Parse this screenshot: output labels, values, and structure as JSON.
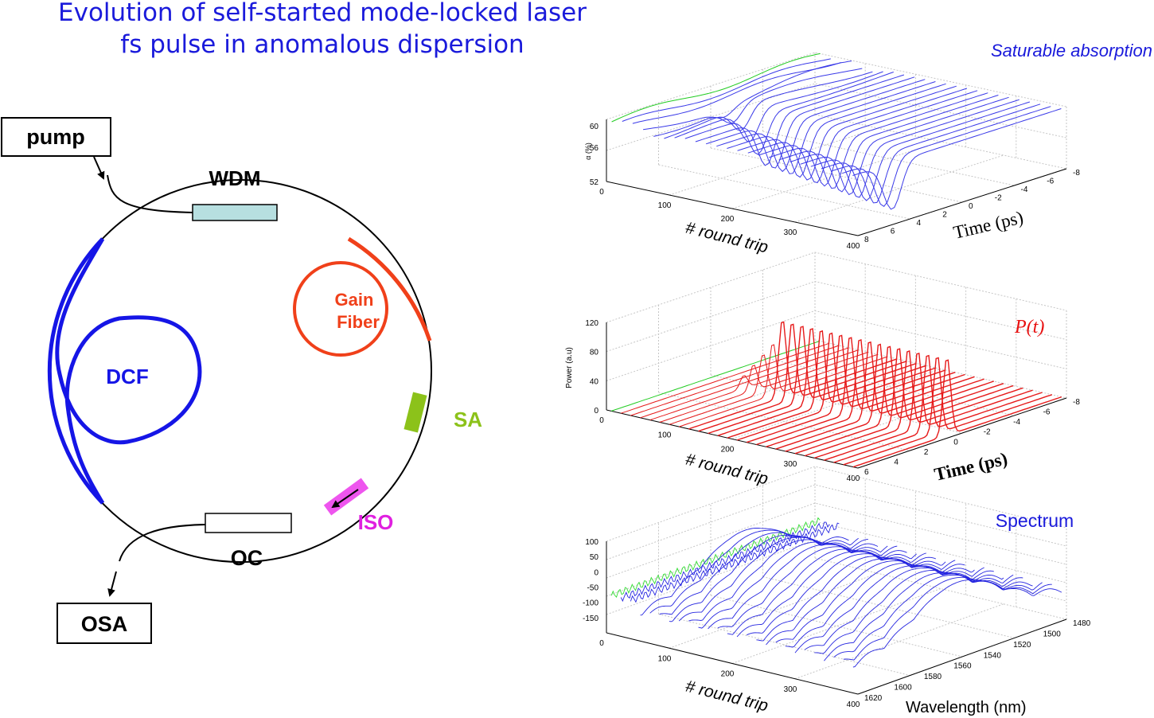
{
  "title": {
    "line1": "Evolution of self-started mode-locked laser",
    "line2": "fs pulse in anomalous dispersion"
  },
  "diagram": {
    "pump": "pump",
    "wdm": "WDM",
    "gain_line1": "Gain",
    "gain_line2": "Fiber",
    "dcf": "DCF",
    "sa": "SA",
    "iso": "ISO",
    "oc": "OC",
    "osa": "OSA",
    "colors": {
      "dcf": "#1515e6",
      "gain": "#f0401a",
      "sa": "#8cc21a",
      "iso": "#ee55ee",
      "wdm": "#b7dfe0"
    }
  },
  "plots": {
    "sa": {
      "label": "Saturable absorption",
      "ylabel": "α (%)",
      "yticks": [
        "60",
        "56",
        "52"
      ],
      "xlabel": "# round trip",
      "xticks": [
        "0",
        "100",
        "200",
        "300",
        "400"
      ],
      "tlabel": "Time (ps)",
      "tticks": [
        "-8",
        "-6",
        "-4",
        "-2",
        "0",
        "2",
        "4",
        "6",
        "8"
      ]
    },
    "power": {
      "label": "P(t)",
      "ylabel": "Power (a.u)",
      "yticks": [
        "120",
        "80",
        "40",
        "0"
      ],
      "xlabel": "# round trip",
      "xticks": [
        "0",
        "100",
        "200",
        "300",
        "400"
      ],
      "tlabel": "Time (ps)",
      "tticks": [
        "-8",
        "-6",
        "-4",
        "-2",
        "0",
        "2",
        "4",
        "6"
      ]
    },
    "spectrum": {
      "label": "Spectrum",
      "yticks": [
        "100",
        "50",
        "0",
        "-50",
        "-100",
        "-150"
      ],
      "xlabel": "# round trip",
      "xticks": [
        "0",
        "100",
        "200",
        "300",
        "400"
      ],
      "wlabel": "Wavelength (nm)",
      "wticks": [
        "1480",
        "1500",
        "1520",
        "1540",
        "1560",
        "1580",
        "1600",
        "1620"
      ]
    }
  }
}
